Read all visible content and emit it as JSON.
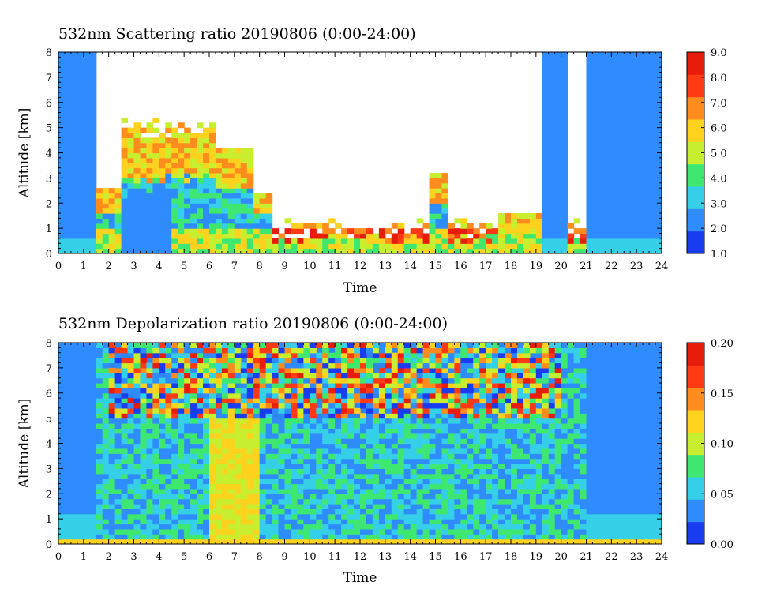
{
  "chart_data": [
    {
      "type": "heatmap",
      "title": "532nm Scattering ratio  20190806 (0:00-24:00)",
      "xlabel": "Time",
      "ylabel": "Altitude [km]",
      "xlim": [
        0,
        24
      ],
      "ylim": [
        0,
        8
      ],
      "x_ticks": [
        "0",
        "1",
        "2",
        "3",
        "4",
        "5",
        "6",
        "7",
        "8",
        "9",
        "10",
        "11",
        "12",
        "13",
        "14",
        "15",
        "16",
        "17",
        "18",
        "19",
        "20",
        "21",
        "22",
        "23",
        "24"
      ],
      "y_ticks": [
        "0",
        "1",
        "2",
        "3",
        "4",
        "5",
        "6",
        "7",
        "8"
      ],
      "colorbar": {
        "range": [
          1.0,
          9.0
        ],
        "tick_labels": [
          "1.0",
          "2.0",
          "3.0",
          "4.0",
          "5.0",
          "6.0",
          "7.0",
          "8.0",
          "9.0"
        ],
        "colors": [
          "#1a3cf0",
          "#2f8cff",
          "#35d0e8",
          "#3ee870",
          "#c8ee30",
          "#ffd21e",
          "#ff8c1c",
          "#ff3a14",
          "#e81c0a"
        ]
      }
    },
    {
      "type": "heatmap",
      "title": "532nm Depolarization ratio  20190806 (0:00-24:00)",
      "xlabel": "Time",
      "ylabel": "Altitude [km]",
      "xlim": [
        0,
        24
      ],
      "ylim": [
        0,
        8
      ],
      "x_ticks": [
        "0",
        "1",
        "2",
        "3",
        "4",
        "5",
        "6",
        "7",
        "8",
        "9",
        "10",
        "11",
        "12",
        "13",
        "14",
        "15",
        "16",
        "17",
        "18",
        "19",
        "20",
        "21",
        "22",
        "23",
        "24"
      ],
      "y_ticks": [
        "0",
        "1",
        "2",
        "3",
        "4",
        "5",
        "6",
        "7",
        "8"
      ],
      "colorbar": {
        "range": [
          0.0,
          0.2
        ],
        "tick_labels": [
          "0.00",
          "0.05",
          "0.10",
          "0.15",
          "0.20"
        ],
        "colors": [
          "#1a3cf0",
          "#2f8cff",
          "#35d0e8",
          "#3ee870",
          "#c8ee30",
          "#ffd21e",
          "#ff8c1c",
          "#ff3a14",
          "#e81c0a"
        ]
      }
    }
  ]
}
